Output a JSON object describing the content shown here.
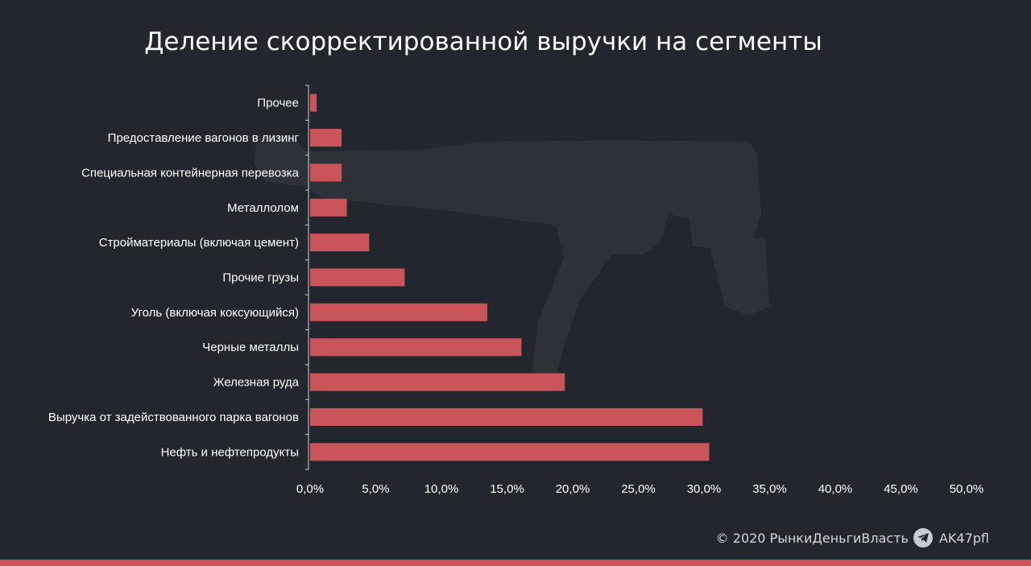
{
  "chart_data": {
    "type": "bar",
    "orientation": "horizontal",
    "title": "Деление скорректированной выручки на сегменты",
    "categories": [
      "Прочее",
      "Предоставление вагонов в лизинг",
      "Специальная контейнерная перевозка",
      "Металлолом",
      "Стройматериалы (включая цемент)",
      "Прочие грузы",
      "Уголь (включая коксующийся)",
      "Черные металлы",
      "Железная  руда",
      "Выручка от задействованного парка вагонов",
      "Нефть и нефтепродукты"
    ],
    "values": [
      0.5,
      2.4,
      2.4,
      2.8,
      4.5,
      7.2,
      13.5,
      16.1,
      19.4,
      29.9,
      30.4
    ],
    "xlim": [
      0,
      50
    ],
    "xticks": [
      "0,0%",
      "5,0%",
      "10,0%",
      "15,0%",
      "20,0%",
      "25,0%",
      "30,0%",
      "35,0%",
      "40,0%",
      "45,0%",
      "50,0%"
    ],
    "grid": false,
    "bar_color": "#c9555a",
    "background_color": "#24262d"
  },
  "footer": {
    "copyright": "© 2020  РынкиДеньгиВласть",
    "handle": "AK47pfl",
    "icon": "telegram-icon"
  }
}
